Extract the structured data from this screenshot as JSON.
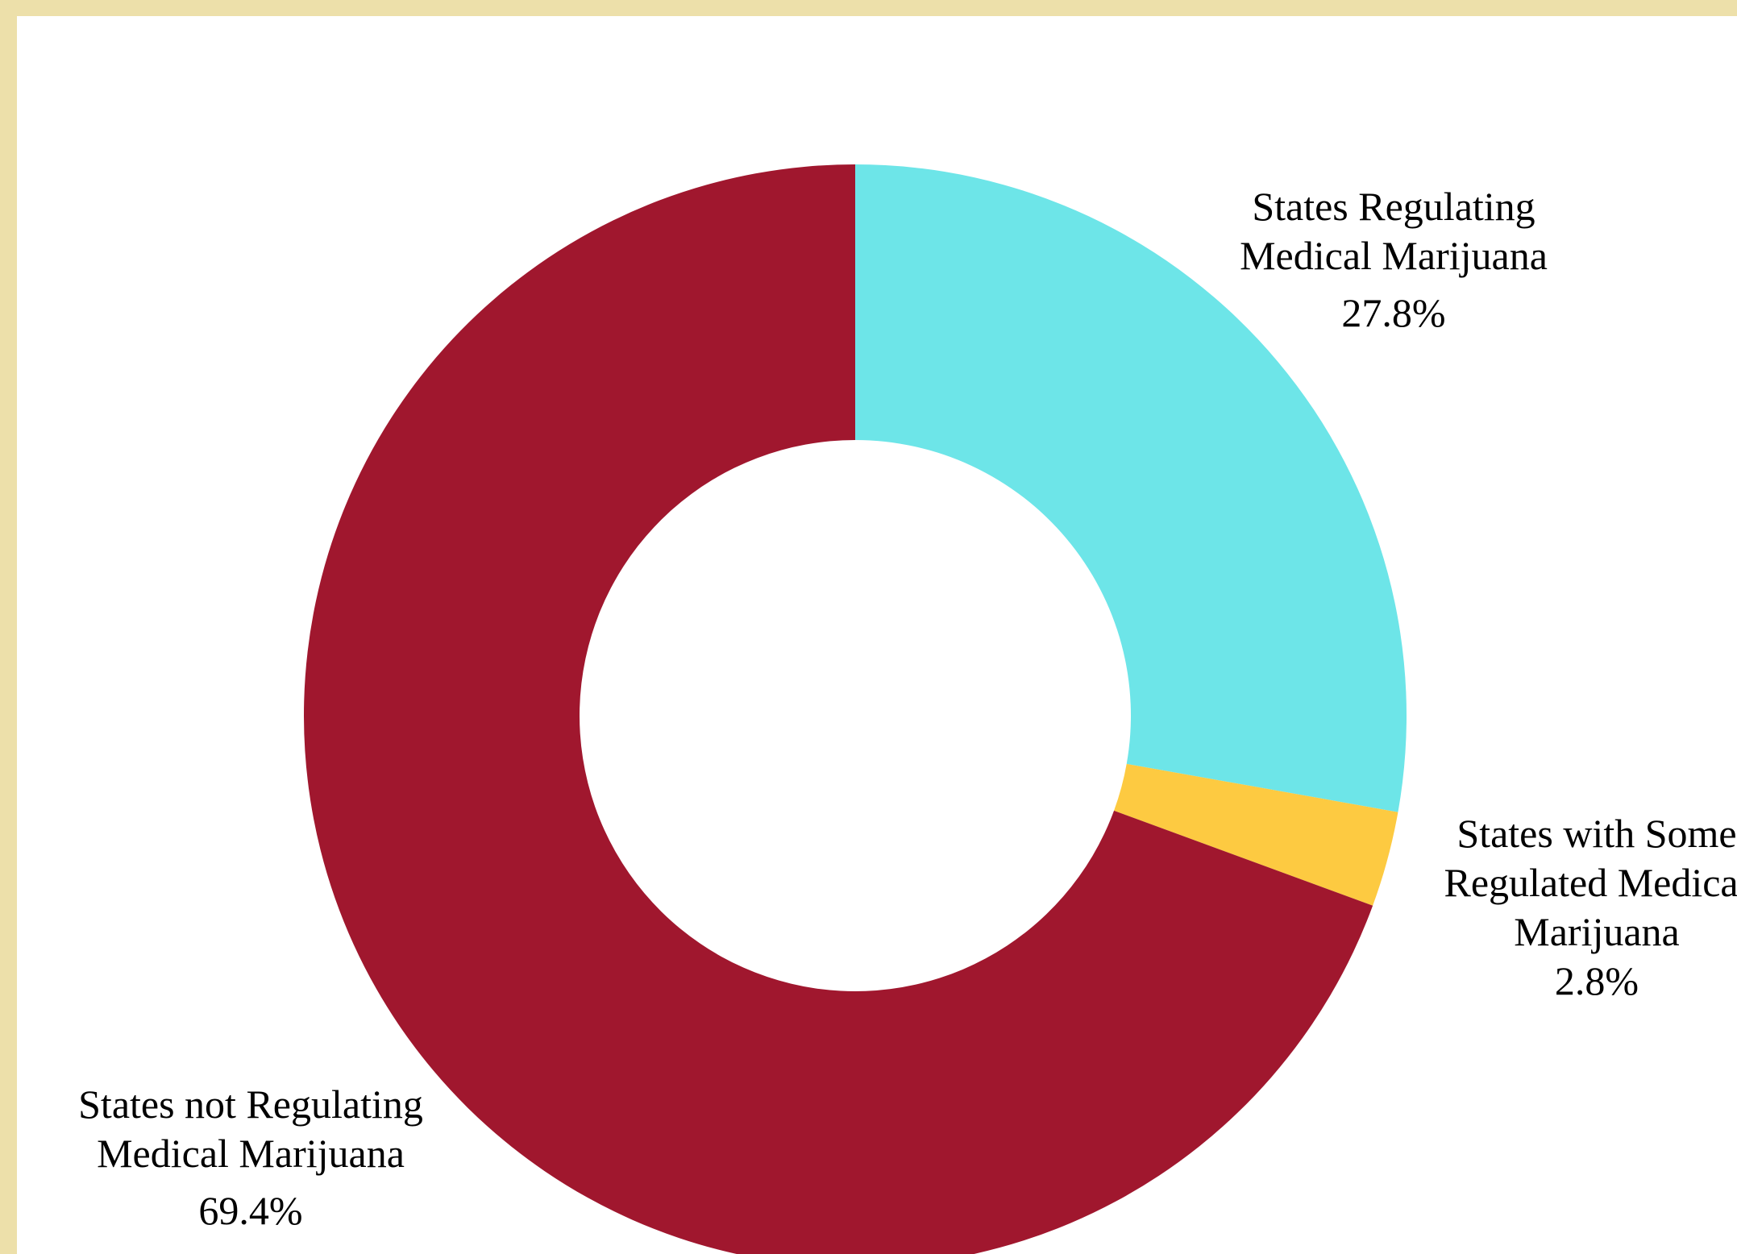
{
  "chart_data": {
    "type": "pie",
    "style": "donut",
    "slices": [
      {
        "key": "regulating",
        "value": 27.8,
        "label_lines": [
          "States Regulating",
          "Medical Marijuana"
        ],
        "value_label": "27.8%",
        "color": "#6de5e8"
      },
      {
        "key": "some",
        "value": 2.8,
        "label_lines": [
          "States with Some",
          "Regulated Medical",
          "Marijuana"
        ],
        "value_label": "2.8%",
        "color": "#fdca41"
      },
      {
        "key": "not",
        "value": 69.4,
        "label_lines": [
          "States not Regulating",
          "Medical Marijuana"
        ],
        "value_label": "69.4%",
        "color": "#a0172e"
      }
    ],
    "start_angle": "12 o'clock",
    "direction": "clockwise",
    "legend": "none"
  }
}
